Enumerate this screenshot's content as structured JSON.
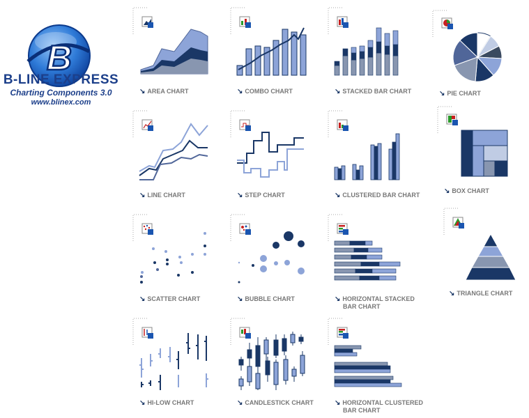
{
  "brand": {
    "name": "B-LINE EXPRESS",
    "subtitle": "Charting Components 3.0",
    "url": "www.blinex.com",
    "logo_letter": "B"
  },
  "colors": {
    "dark": "#1a3766",
    "mid": "#506699",
    "light": "#8da4d8",
    "grey": "#8896b0",
    "label": "#777777",
    "brand": "#1c3f8a"
  },
  "charts": [
    {
      "id": "area",
      "label": "AREA CHART",
      "icon": "area-chart-icon"
    },
    {
      "id": "combo",
      "label": "COMBO CHART",
      "icon": "combo-chart-icon"
    },
    {
      "id": "stacked-bar",
      "label": "STACKED BAR CHART",
      "icon": "stacked-bar-chart-icon"
    },
    {
      "id": "pie",
      "label": "PIE CHART",
      "icon": "pie-chart-icon"
    },
    {
      "id": "line",
      "label": "LINE CHART",
      "icon": "line-chart-icon"
    },
    {
      "id": "step",
      "label": "STEP CHART",
      "icon": "step-chart-icon"
    },
    {
      "id": "clustered-bar",
      "label": "CLUSTERED BAR CHART",
      "icon": "clustered-bar-chart-icon"
    },
    {
      "id": "box",
      "label": "BOX CHART",
      "icon": "box-chart-icon"
    },
    {
      "id": "scatter",
      "label": "SCATTER CHART",
      "icon": "scatter-chart-icon"
    },
    {
      "id": "bubble",
      "label": "BUBBLE CHART",
      "icon": "bubble-chart-icon"
    },
    {
      "id": "horizontal-stacked",
      "label": "HORIZONTAL STACKED",
      "label2": "BAR CHART",
      "icon": "horizontal-stacked-bar-chart-icon"
    },
    {
      "id": "triangle",
      "label": "TRIANGLE CHART",
      "icon": "triangle-chart-icon"
    },
    {
      "id": "hi-low",
      "label": "HI-LOW CHART",
      "icon": "hi-low-chart-icon"
    },
    {
      "id": "candlestick",
      "label": "CANDLESTICK CHART",
      "icon": "candlestick-chart-icon"
    },
    {
      "id": "horizontal-clustered",
      "label": "HORIZONTAL CLUSTERED",
      "label2": "BAR CHART",
      "icon": "horizontal-clustered-bar-chart-icon"
    }
  ]
}
